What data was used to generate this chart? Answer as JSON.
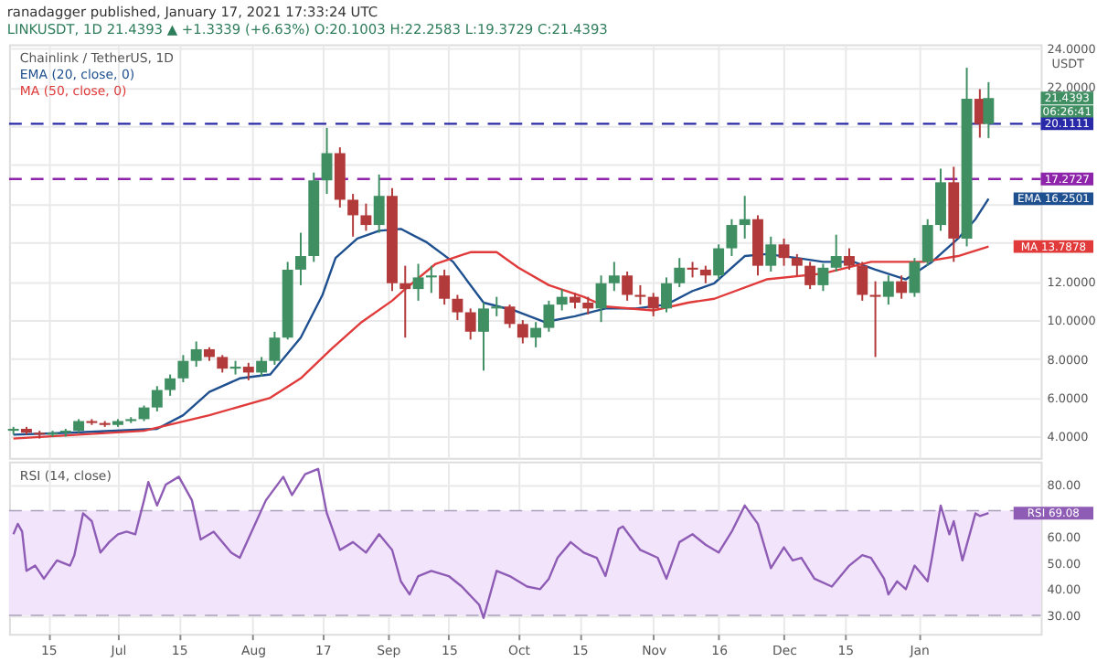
{
  "chart_data": [
    {
      "type": "candlestick",
      "title": "ranadagger published, January 17, 2021 17:33:24 UTC",
      "subtitle": "LINKUSDT, 1D 21.4393 ▲ +1.3339 (+6.63%) O:20.1003 H:22.2583 L:19.3729 C:21.4393",
      "ylabel": "USDT",
      "x": [
        "2020-06-07",
        "2020-06-10",
        "2020-06-13",
        "2020-06-16",
        "2020-06-19",
        "2020-06-22",
        "2020-06-25",
        "2020-06-28",
        "2020-07-01",
        "2020-07-04",
        "2020-07-07",
        "2020-07-10",
        "2020-07-13",
        "2020-07-16",
        "2020-07-19",
        "2020-07-22",
        "2020-07-25",
        "2020-07-28",
        "2020-07-31",
        "2020-08-03",
        "2020-08-06",
        "2020-08-09",
        "2020-08-12",
        "2020-08-15",
        "2020-08-18",
        "2020-08-21",
        "2020-08-24",
        "2020-08-27",
        "2020-08-30",
        "2020-09-02",
        "2020-09-05",
        "2020-09-08",
        "2020-09-11",
        "2020-09-14",
        "2020-09-17",
        "2020-09-20",
        "2020-09-23",
        "2020-09-26",
        "2020-09-29",
        "2020-10-02",
        "2020-10-05",
        "2020-10-08",
        "2020-10-11",
        "2020-10-14",
        "2020-10-17",
        "2020-10-20",
        "2020-10-23",
        "2020-10-26",
        "2020-10-29",
        "2020-11-01",
        "2020-11-04",
        "2020-11-07",
        "2020-11-10",
        "2020-11-13",
        "2020-11-16",
        "2020-11-19",
        "2020-11-22",
        "2020-11-25",
        "2020-11-28",
        "2020-12-01",
        "2020-12-04",
        "2020-12-07",
        "2020-12-10",
        "2020-12-13",
        "2020-12-16",
        "2020-12-19",
        "2020-12-22",
        "2020-12-25",
        "2020-12-28",
        "2020-12-31",
        "2021-01-03",
        "2021-01-06",
        "2021-01-09",
        "2021-01-12",
        "2021-01-15",
        "2021-01-17"
      ],
      "ohlc": [
        [
          4.3,
          4.5,
          4.1,
          4.4
        ],
        [
          4.4,
          4.5,
          4.1,
          4.2
        ],
        [
          4.2,
          4.3,
          3.9,
          4.1
        ],
        [
          4.1,
          4.3,
          4.0,
          4.2
        ],
        [
          4.2,
          4.4,
          4.0,
          4.3
        ],
        [
          4.3,
          4.9,
          4.2,
          4.8
        ],
        [
          4.8,
          4.9,
          4.6,
          4.7
        ],
        [
          4.7,
          4.8,
          4.5,
          4.6
        ],
        [
          4.6,
          4.9,
          4.5,
          4.8
        ],
        [
          4.8,
          5.0,
          4.7,
          4.9
        ],
        [
          4.9,
          5.6,
          4.8,
          5.5
        ],
        [
          5.5,
          6.6,
          5.3,
          6.4
        ],
        [
          6.4,
          7.2,
          6.1,
          7.0
        ],
        [
          7.0,
          8.2,
          6.8,
          7.9
        ],
        [
          7.9,
          8.9,
          7.6,
          8.5
        ],
        [
          8.5,
          8.6,
          7.9,
          8.1
        ],
        [
          8.1,
          8.2,
          7.3,
          7.5
        ],
        [
          7.5,
          7.9,
          7.2,
          7.6
        ],
        [
          7.6,
          7.8,
          6.9,
          7.3
        ],
        [
          7.3,
          8.1,
          7.1,
          7.9
        ],
        [
          7.9,
          9.4,
          7.7,
          9.1
        ],
        [
          9.1,
          13.0,
          9.0,
          12.6
        ],
        [
          12.6,
          14.5,
          11.8,
          13.3
        ],
        [
          13.3,
          17.6,
          13.0,
          17.2
        ],
        [
          17.2,
          19.9,
          16.5,
          18.6
        ],
        [
          18.6,
          18.9,
          15.8,
          16.2
        ],
        [
          16.2,
          16.5,
          14.3,
          15.4
        ],
        [
          15.4,
          16.0,
          14.6,
          14.9
        ],
        [
          14.9,
          17.5,
          14.5,
          16.4
        ],
        [
          16.4,
          16.8,
          11.5,
          11.9
        ],
        [
          11.9,
          12.8,
          9.1,
          11.6
        ],
        [
          11.6,
          12.9,
          11.0,
          12.2
        ],
        [
          12.2,
          12.8,
          11.4,
          12.3
        ],
        [
          12.3,
          12.6,
          10.8,
          11.1
        ],
        [
          11.1,
          11.3,
          10.0,
          10.4
        ],
        [
          10.4,
          10.6,
          9.0,
          9.4
        ],
        [
          9.4,
          10.9,
          7.4,
          10.6
        ],
        [
          10.6,
          11.2,
          10.2,
          10.7
        ],
        [
          10.7,
          10.8,
          9.6,
          9.8
        ],
        [
          9.8,
          10.0,
          8.8,
          9.1
        ],
        [
          9.1,
          9.9,
          8.6,
          9.6
        ],
        [
          9.6,
          11.0,
          9.4,
          10.8
        ],
        [
          10.8,
          11.6,
          10.5,
          11.2
        ],
        [
          11.2,
          11.4,
          10.6,
          10.9
        ],
        [
          10.9,
          11.2,
          10.3,
          10.6
        ],
        [
          10.6,
          12.3,
          9.9,
          11.9
        ],
        [
          11.9,
          13.0,
          11.5,
          12.3
        ],
        [
          12.3,
          12.5,
          11.0,
          11.3
        ],
        [
          11.3,
          11.8,
          10.8,
          11.2
        ],
        [
          11.2,
          11.4,
          10.2,
          10.6
        ],
        [
          10.6,
          12.2,
          10.4,
          11.9
        ],
        [
          11.9,
          13.2,
          11.7,
          12.7
        ],
        [
          12.7,
          13.0,
          12.2,
          12.6
        ],
        [
          12.6,
          12.8,
          11.9,
          12.3
        ],
        [
          12.3,
          13.9,
          12.1,
          13.7
        ],
        [
          13.7,
          15.2,
          13.3,
          14.9
        ],
        [
          14.9,
          16.4,
          14.2,
          15.2
        ],
        [
          15.2,
          15.4,
          12.3,
          12.8
        ],
        [
          12.8,
          14.3,
          12.5,
          13.9
        ],
        [
          13.9,
          14.2,
          12.8,
          13.2
        ],
        [
          13.2,
          13.4,
          12.3,
          12.8
        ],
        [
          12.8,
          13.0,
          11.6,
          11.8
        ],
        [
          11.8,
          12.9,
          11.5,
          12.7
        ],
        [
          12.7,
          14.4,
          12.5,
          13.3
        ],
        [
          13.3,
          13.7,
          12.6,
          12.8
        ],
        [
          12.8,
          13.0,
          11.0,
          11.3
        ],
        [
          11.3,
          12.0,
          8.1,
          11.2
        ],
        [
          11.2,
          12.3,
          10.8,
          12.0
        ],
        [
          12.0,
          12.3,
          11.1,
          11.4
        ],
        [
          11.4,
          13.2,
          11.2,
          13.0
        ],
        [
          13.0,
          15.2,
          12.8,
          14.9
        ],
        [
          14.9,
          17.8,
          14.6,
          17.1
        ],
        [
          17.1,
          17.9,
          13.0,
          14.2
        ],
        [
          14.2,
          23.0,
          13.8,
          21.4
        ],
        [
          21.4,
          21.9,
          19.4,
          20.1
        ],
        [
          20.1003,
          22.2583,
          19.3729,
          21.4393
        ]
      ],
      "colors": [
        "#3f8f63",
        "#b33a3a",
        "#b33a3a",
        "#3f8f63",
        "#3f8f63",
        "#3f8f63",
        "#b33a3a",
        "#b33a3a",
        "#3f8f63",
        "#3f8f63",
        "#3f8f63",
        "#3f8f63",
        "#3f8f63",
        "#3f8f63",
        "#3f8f63",
        "#b33a3a",
        "#b33a3a",
        "#3f8f63",
        "#b33a3a",
        "#3f8f63",
        "#3f8f63",
        "#3f8f63",
        "#3f8f63",
        "#3f8f63",
        "#3f8f63",
        "#b33a3a",
        "#b33a3a",
        "#b33a3a",
        "#3f8f63",
        "#b33a3a",
        "#b33a3a",
        "#3f8f63",
        "#3f8f63",
        "#b33a3a",
        "#b33a3a",
        "#b33a3a",
        "#3f8f63",
        "#3f8f63",
        "#b33a3a",
        "#b33a3a",
        "#3f8f63",
        "#3f8f63",
        "#3f8f63",
        "#b33a3a",
        "#b33a3a",
        "#3f8f63",
        "#3f8f63",
        "#b33a3a",
        "#b33a3a",
        "#b33a3a",
        "#3f8f63",
        "#3f8f63",
        "#b33a3a",
        "#b33a3a",
        "#3f8f63",
        "#3f8f63",
        "#3f8f63",
        "#b33a3a",
        "#3f8f63",
        "#b33a3a",
        "#b33a3a",
        "#b33a3a",
        "#3f8f63",
        "#3f8f63",
        "#b33a3a",
        "#b33a3a",
        "#b33a3a",
        "#3f8f63",
        "#b33a3a",
        "#3f8f63",
        "#3f8f63",
        "#3f8f63",
        "#b33a3a",
        "#3f8f63",
        "#b33a3a",
        "#3f8f63"
      ],
      "series": [
        {
          "name": "EMA (20, close, 0)",
          "type": "line",
          "color": "#1e4f8f",
          "x": [
            "2020-06-07",
            "2020-06-20",
            "2020-07-10",
            "2020-07-16",
            "2020-07-22",
            "2020-07-29",
            "2020-08-05",
            "2020-08-12",
            "2020-08-17",
            "2020-08-20",
            "2020-08-25",
            "2020-08-30",
            "2020-09-04",
            "2020-09-10",
            "2020-09-16",
            "2020-09-23",
            "2020-09-30",
            "2020-10-07",
            "2020-10-14",
            "2020-10-21",
            "2020-10-28",
            "2020-11-04",
            "2020-11-10",
            "2020-11-15",
            "2020-11-22",
            "2020-11-27",
            "2020-12-04",
            "2020-12-10",
            "2020-12-17",
            "2020-12-22",
            "2020-12-29",
            "2021-01-04",
            "2021-01-10",
            "2021-01-14",
            "2021-01-17"
          ],
          "values": [
            4.1,
            4.2,
            4.4,
            5.1,
            6.3,
            7.0,
            7.2,
            9.1,
            11.3,
            13.2,
            14.2,
            14.6,
            14.7,
            14.0,
            13.0,
            10.9,
            10.5,
            9.9,
            10.2,
            10.6,
            10.6,
            10.8,
            11.5,
            11.9,
            13.3,
            13.4,
            13.2,
            13.0,
            13.0,
            12.6,
            12.1,
            13.0,
            14.2,
            15.2,
            16.2501
          ]
        },
        {
          "name": "MA (50, close, 0)",
          "type": "line",
          "color": "#e03a3a",
          "x": [
            "2020-06-07",
            "2020-07-07",
            "2020-07-22",
            "2020-08-05",
            "2020-08-12",
            "2020-08-19",
            "2020-08-26",
            "2020-09-02",
            "2020-09-05",
            "2020-09-12",
            "2020-09-20",
            "2020-09-26",
            "2020-10-01",
            "2020-10-08",
            "2020-10-16",
            "2020-10-21",
            "2020-11-01",
            "2020-11-09",
            "2020-11-15",
            "2020-11-27",
            "2020-12-10",
            "2020-12-21",
            "2021-01-02",
            "2021-01-10",
            "2021-01-17"
          ],
          "values": [
            3.9,
            4.3,
            5.1,
            6.0,
            7.0,
            8.5,
            9.9,
            11.0,
            11.6,
            12.9,
            13.5,
            13.5,
            12.7,
            11.8,
            11.2,
            10.7,
            10.5,
            10.9,
            11.1,
            12.1,
            12.4,
            13.0,
            13.0,
            13.3,
            13.7878
          ]
        }
      ],
      "ref_lines": [
        {
          "axis": "y",
          "value": 20.1111,
          "label": "20.1111",
          "color": "#2a2aa8",
          "line_style": "dashed"
        },
        {
          "axis": "y",
          "value": 17.2727,
          "label": "17.2727",
          "color": "#8e24aa",
          "line_style": "dashed"
        }
      ],
      "annotations": [
        "Chainlink / TetherUS, 1D",
        "21.4393",
        "06:26:41",
        "EMA 16.2501",
        "MA 13.7878"
      ],
      "xlim": [
        "2020-06-06",
        "2021-01-29"
      ],
      "xticks": [
        {
          "value": "2020-06-15",
          "label": null
        },
        {
          "value": "2020-07-01",
          "label": null
        },
        {
          "value": "2020-07-15",
          "label": null
        },
        {
          "value": "2020-08-01",
          "label": null
        },
        {
          "value": "2020-08-17",
          "label": null
        },
        {
          "value": "2020-09-01",
          "label": null
        },
        {
          "value": "2020-09-15",
          "label": null
        },
        {
          "value": "2020-10-01",
          "label": null
        },
        {
          "value": "2020-10-15",
          "label": null
        },
        {
          "value": "2020-11-01",
          "label": null
        },
        {
          "value": "2020-11-16",
          "label": null
        },
        {
          "value": "2020-12-01",
          "label": null
        },
        {
          "value": "2020-12-15",
          "label": null
        },
        {
          "value": "2021-01-01",
          "label": null
        }
      ],
      "ylim": [
        2.9,
        24.2
      ],
      "yticks": [
        {
          "value": 4,
          "label": "4.0000"
        },
        {
          "value": 6,
          "label": "6.0000"
        },
        {
          "value": 8,
          "label": "8.0000"
        },
        {
          "value": 10,
          "label": "10.0000"
        },
        {
          "value": 12,
          "label": "12.0000"
        },
        {
          "value": 14,
          "label": null
        },
        {
          "value": 16,
          "label": null
        },
        {
          "value": 18,
          "label": null
        },
        {
          "value": 20,
          "label": null
        },
        {
          "value": 22,
          "label": "22.0000"
        },
        {
          "value": 24,
          "label": "24.0000"
        }
      ],
      "tick_labels": "y",
      "grid": true
    },
    {
      "type": "line",
      "title": "RSI (14, close)",
      "series": [
        {
          "type": "line",
          "color": "#8e5bb5",
          "x": [
            "2020-06-07",
            "2020-06-08",
            "2020-06-09",
            "2020-06-10",
            "2020-06-12",
            "2020-06-14",
            "2020-06-17",
            "2020-06-20",
            "2020-06-21",
            "2020-06-23",
            "2020-06-25",
            "2020-06-27",
            "2020-06-29",
            "2020-07-01",
            "2020-07-03",
            "2020-07-05",
            "2020-07-07",
            "2020-07-08",
            "2020-07-10",
            "2020-07-12",
            "2020-07-15",
            "2020-07-18",
            "2020-07-20",
            "2020-07-23",
            "2020-07-27",
            "2020-07-29",
            "2020-08-01",
            "2020-08-04",
            "2020-08-08",
            "2020-08-10",
            "2020-08-13",
            "2020-08-16",
            "2020-08-18",
            "2020-08-21",
            "2020-08-24",
            "2020-08-27",
            "2020-08-30",
            "2020-09-02",
            "2020-09-04",
            "2020-09-06",
            "2020-09-08",
            "2020-09-11",
            "2020-09-15",
            "2020-09-18",
            "2020-09-22",
            "2020-09-23",
            "2020-09-26",
            "2020-09-29",
            "2020-10-03",
            "2020-10-06",
            "2020-10-08",
            "2020-10-10",
            "2020-10-13",
            "2020-10-16",
            "2020-10-19",
            "2020-10-21",
            "2020-10-24",
            "2020-10-25",
            "2020-10-29",
            "2020-11-02",
            "2020-11-04",
            "2020-11-07",
            "2020-11-10",
            "2020-11-13",
            "2020-11-16",
            "2020-11-19",
            "2020-11-22",
            "2020-11-25",
            "2020-11-28",
            "2020-12-01",
            "2020-12-03",
            "2020-12-05",
            "2020-12-08",
            "2020-12-12",
            "2020-12-16",
            "2020-12-19",
            "2020-12-21",
            "2020-12-24",
            "2020-12-25",
            "2020-12-27",
            "2020-12-29",
            "2020-12-31",
            "2021-01-03",
            "2021-01-04",
            "2021-01-06",
            "2021-01-08",
            "2021-01-09",
            "2021-01-11",
            "2021-01-13",
            "2021-01-14",
            "2021-01-15",
            "2021-01-17"
          ],
          "values": [
            61,
            65,
            62,
            47,
            49,
            44,
            51,
            49,
            53,
            69,
            66,
            54,
            58,
            61,
            62,
            61,
            74,
            81,
            72,
            80,
            83,
            74,
            59,
            62,
            54,
            52,
            63,
            74,
            83,
            76,
            84,
            86,
            69,
            55,
            58,
            54,
            61,
            55,
            43,
            38,
            45,
            47,
            45,
            41,
            34,
            29,
            47,
            45,
            41,
            40,
            44,
            52,
            58,
            54,
            52,
            45,
            63,
            64,
            55,
            52,
            44,
            58,
            61,
            57,
            54,
            62,
            72,
            65,
            48,
            56,
            51,
            52,
            44,
            41,
            49,
            53,
            52,
            44,
            38,
            43,
            40,
            49,
            43,
            52,
            72,
            61,
            66,
            51,
            63,
            69,
            68,
            69.08
          ]
        }
      ],
      "bands": [
        {
          "axis": "y",
          "from": 30,
          "to": 70,
          "color": "#f1e4fb"
        }
      ],
      "ref_lines": [
        {
          "axis": "y",
          "value": 30,
          "color": "#a9a0b8",
          "line_style": "dashed"
        },
        {
          "axis": "y",
          "value": 70,
          "color": "#a9a0b8",
          "line_style": "dashed"
        }
      ],
      "annotations": [
        "RSI 69.08"
      ],
      "xlim": [
        "2020-06-06",
        "2021-01-29"
      ],
      "xticks": [
        {
          "value": "2020-06-15",
          "label": "15"
        },
        {
          "value": "2020-07-01",
          "label": "Jul"
        },
        {
          "value": "2020-07-15",
          "label": "15"
        },
        {
          "value": "2020-08-01",
          "label": "Aug"
        },
        {
          "value": "2020-08-17",
          "label": "17"
        },
        {
          "value": "2020-09-01",
          "label": "Sep"
        },
        {
          "value": "2020-09-15",
          "label": "15"
        },
        {
          "value": "2020-10-01",
          "label": "Oct"
        },
        {
          "value": "2020-10-15",
          "label": "15"
        },
        {
          "value": "2020-11-01",
          "label": "Nov"
        },
        {
          "value": "2020-11-16",
          "label": "16"
        },
        {
          "value": "2020-12-01",
          "label": "Dec"
        },
        {
          "value": "2020-12-15",
          "label": "15"
        },
        {
          "value": "2021-01-01",
          "label": "Jan"
        }
      ],
      "ylim": [
        22.9,
        88.8
      ],
      "yticks": [
        {
          "value": 30,
          "label": "30.00"
        },
        {
          "value": 40,
          "label": "40.00"
        },
        {
          "value": 50,
          "label": "50.00"
        },
        {
          "value": 60,
          "label": "60.00"
        },
        {
          "value": 80,
          "label": "80.00"
        }
      ],
      "grid": true
    }
  ]
}
